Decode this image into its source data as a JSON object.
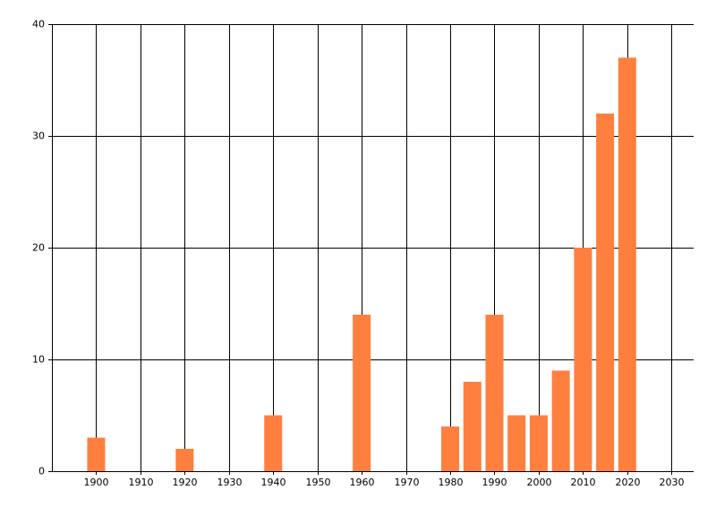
{
  "chart_data": {
    "type": "bar",
    "x": [
      1900,
      1920,
      1940,
      1960,
      1980,
      1985,
      1990,
      1995,
      2000,
      2005,
      2010,
      2015,
      2020
    ],
    "values": [
      3,
      2,
      5,
      14,
      4,
      8,
      14,
      5,
      5,
      9,
      20,
      32,
      37
    ],
    "color": "#ff7f3f",
    "xlim": [
      1890,
      2035
    ],
    "xticks": [
      1900,
      1910,
      1920,
      1930,
      1940,
      1950,
      1960,
      1970,
      1980,
      1990,
      2000,
      2010,
      2020,
      2030
    ],
    "ylim": [
      0,
      40
    ],
    "yticks": [
      0,
      10,
      20,
      30,
      40
    ],
    "grid": true
  }
}
